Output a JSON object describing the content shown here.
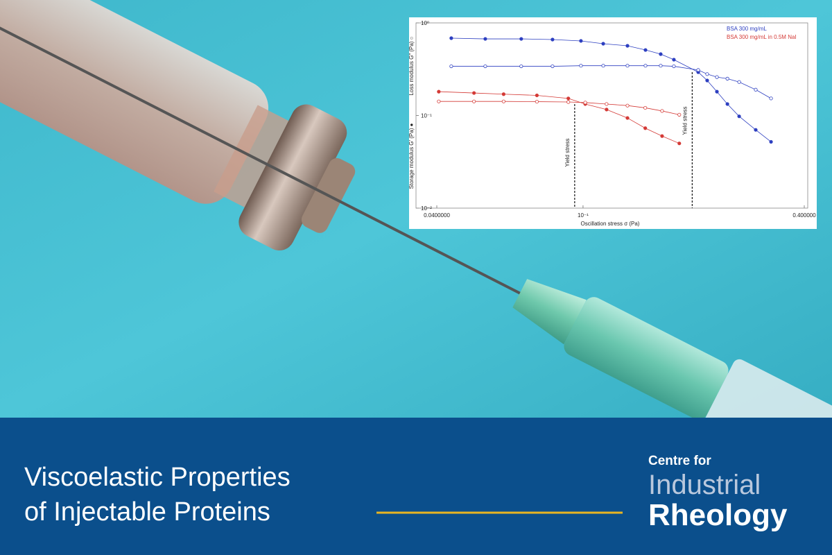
{
  "chart_data": {
    "type": "scatter-line",
    "xlabel": "Oscillation stress σ (Pa)",
    "ylabels": [
      "Storage modulus G′ (Pa) ●",
      "Loss modulus G″ (Pa) ○"
    ],
    "xlog": true,
    "ylog": true,
    "xlim": [
      0.04,
      0.4
    ],
    "ylim": [
      0.01,
      1
    ],
    "xticks": [
      {
        "value": 0.04,
        "label": "0.0400000"
      },
      {
        "value": 0.1,
        "label": "10⁻¹"
      },
      {
        "value": 0.4,
        "label": "0.400000"
      }
    ],
    "yticks": [
      {
        "value": 0.01,
        "label": "10⁻²"
      },
      {
        "value": 0.1,
        "label": "10⁻¹"
      },
      {
        "value": 1,
        "label": "10⁰"
      }
    ],
    "series": [
      {
        "name": "BSA 300 mg/mL",
        "color": "#2d3fc0",
        "x": [
          0.0438,
          0.0542,
          0.0679,
          0.0826,
          0.0987,
          0.1135,
          0.1321,
          0.1479,
          0.1627,
          0.1767,
          0.2058,
          0.2177,
          0.2314,
          0.2471,
          0.266,
          0.2951,
          0.3248
        ],
        "values": [
          0.684,
          0.672,
          0.672,
          0.661,
          0.639,
          0.596,
          0.566,
          0.51,
          0.46,
          0.401,
          0.294,
          0.239,
          0.181,
          0.133,
          0.098,
          0.07,
          0.052
        ],
        "loss_values": [
          0.34,
          0.34,
          0.34,
          0.34,
          0.345,
          0.345,
          0.345,
          0.345,
          0.345,
          0.34,
          0.31,
          0.28,
          0.26,
          0.25,
          0.23,
          0.19,
          0.153
        ]
      },
      {
        "name": "BSA 300 mg/mL in 0.5M NaI",
        "color": "#d43a36",
        "x": [
          0.0405,
          0.0505,
          0.0608,
          0.0749,
          0.0912,
          0.1014,
          0.1159,
          0.1321,
          0.1477,
          0.1641,
          0.1828
        ],
        "values": [
          0.181,
          0.175,
          0.17,
          0.165,
          0.153,
          0.133,
          0.116,
          0.094,
          0.073,
          0.06,
          0.05
        ],
        "loss_values": [
          0.142,
          0.142,
          0.142,
          0.141,
          0.14,
          0.138,
          0.133,
          0.128,
          0.121,
          0.112,
          0.102
        ]
      }
    ],
    "annotations": [
      {
        "text": "Yield stress",
        "x": 0.0949,
        "y": 0.133
      },
      {
        "text": "Yield stress",
        "x": 0.1982,
        "y": 0.294
      }
    ]
  },
  "banner": {
    "title_lines": [
      "Viscoelastic Properties",
      "of Injectable Proteins"
    ],
    "logo": [
      "Centre for",
      "Industrial",
      "Rheology"
    ]
  }
}
